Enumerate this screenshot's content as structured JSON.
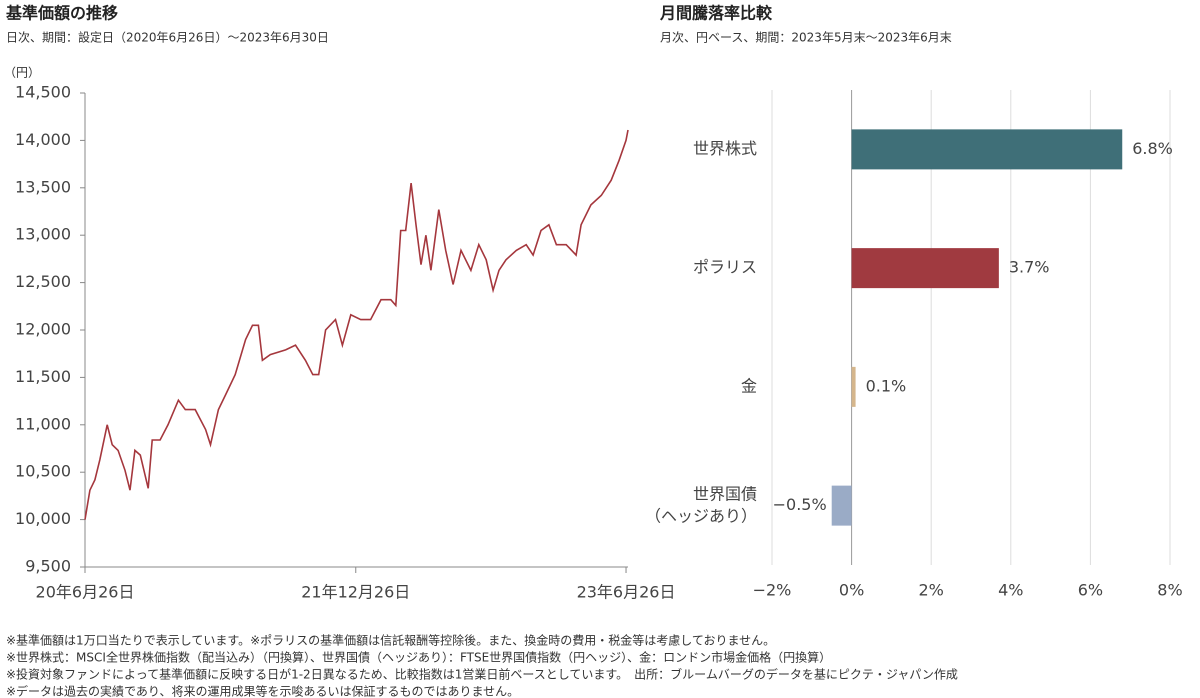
{
  "chart_data": [
    {
      "type": "line",
      "title": "基準価額の推移",
      "subtitle": "日次、期間：設定日（2020年6月26日）～2023年6月30日",
      "y_unit": "（円）",
      "color": "#a5373d",
      "grid": false,
      "x": [
        "2020-06-26",
        "2020-07-06",
        "2020-07-16",
        "2020-07-26",
        "2020-08-10",
        "2020-08-20",
        "2020-09-01",
        "2020-09-15",
        "2020-09-25",
        "2020-10-05",
        "2020-10-16",
        "2020-11-01",
        "2020-11-09",
        "2020-11-25",
        "2020-12-11",
        "2021-01-01",
        "2021-01-15",
        "2021-02-04",
        "2021-02-25",
        "2021-03-07",
        "2021-03-23",
        "2021-04-06",
        "2021-04-26",
        "2021-05-17",
        "2021-05-31",
        "2021-06-12",
        "2021-06-20",
        "2021-07-06",
        "2021-08-06",
        "2021-08-26",
        "2021-09-15",
        "2021-09-30",
        "2021-10-12",
        "2021-10-26",
        "2021-11-15",
        "2021-11-29",
        "2021-12-16",
        "2022-01-05",
        "2022-01-25",
        "2022-02-15",
        "2022-03-07",
        "2022-03-17",
        "2022-03-27",
        "2022-04-06",
        "2022-04-17",
        "2022-04-27",
        "2022-05-07",
        "2022-05-17",
        "2022-05-27",
        "2022-06-12",
        "2022-06-26",
        "2022-07-11",
        "2022-07-27",
        "2022-08-16",
        "2022-09-01",
        "2022-09-16",
        "2022-09-30",
        "2022-10-12",
        "2022-10-26",
        "2022-11-16",
        "2022-12-06",
        "2022-12-20",
        "2023-01-05",
        "2023-01-21",
        "2023-02-05",
        "2023-02-25",
        "2023-03-17",
        "2023-03-27",
        "2023-04-16",
        "2023-05-07",
        "2023-05-27",
        "2023-06-12",
        "2023-06-26",
        "2023-06-30"
      ],
      "values": [
        10000,
        10310,
        10420,
        10630,
        11000,
        10790,
        10730,
        10520,
        10310,
        10730,
        10680,
        10330,
        10840,
        10840,
        11000,
        11260,
        11160,
        11160,
        10950,
        10790,
        11160,
        11310,
        11530,
        11900,
        12050,
        12050,
        11680,
        11740,
        11790,
        11840,
        11680,
        11530,
        11530,
        12000,
        12110,
        11840,
        12160,
        12110,
        12110,
        12320,
        12320,
        12260,
        13050,
        13050,
        13550,
        13110,
        12690,
        13000,
        12630,
        13270,
        12840,
        12480,
        12840,
        12630,
        12900,
        12740,
        12420,
        12630,
        12740,
        12840,
        12900,
        12790,
        13050,
        13110,
        12900,
        12900,
        12790,
        13110,
        13320,
        13420,
        13580,
        13790,
        14000,
        14110
      ],
      "xlim": [
        "2020-06-26",
        "2023-06-30"
      ],
      "xticks": [
        {
          "value": "2020-06-26",
          "label": "20年6月26日"
        },
        {
          "value": "2021-12-26",
          "label": "21年12月26日"
        },
        {
          "value": "2023-06-26",
          "label": "23年6月26日"
        }
      ],
      "ylim": [
        9500,
        14500
      ],
      "yticks": [
        {
          "value": 9500,
          "label": "9,500"
        },
        {
          "value": 10000,
          "label": "10,000"
        },
        {
          "value": 10500,
          "label": "10,500"
        },
        {
          "value": 11000,
          "label": "11,000"
        },
        {
          "value": 11500,
          "label": "11,500"
        },
        {
          "value": 12000,
          "label": "12,000"
        },
        {
          "value": 12500,
          "label": "12,500"
        },
        {
          "value": 13000,
          "label": "13,000"
        },
        {
          "value": 13500,
          "label": "13,500"
        },
        {
          "value": 14000,
          "label": "14,000"
        },
        {
          "value": 14500,
          "label": "14,500"
        }
      ]
    },
    {
      "type": "bar",
      "horizontal": true,
      "title": "月間騰落率比較",
      "subtitle": "月次、円ベース、期間：2023年5月末～2023年6月末",
      "grid": true,
      "categories": [
        "世界株式",
        "ポラリス",
        "金",
        "世界国債\n（ヘッジあり）"
      ],
      "values": [
        6.8,
        3.7,
        0.1,
        -0.5
      ],
      "value_labels": [
        "6.8%",
        "3.7%",
        "0.1%",
        "−0.5%"
      ],
      "colors": [
        "#3f6f78",
        "#a03a40",
        "#d5b68c",
        "#9aabc6"
      ],
      "xlim": [
        -2,
        8
      ],
      "xticks": [
        {
          "value": -2,
          "label": "−2%"
        },
        {
          "value": 0,
          "label": "0%"
        },
        {
          "value": 2,
          "label": "2%"
        },
        {
          "value": 4,
          "label": "4%"
        },
        {
          "value": 6,
          "label": "6%"
        },
        {
          "value": 8,
          "label": "8%"
        }
      ]
    }
  ],
  "notes": [
    "※基準価額は1万口当たりで表示しています。※ポラリスの基準価額は信託報酬等控除後。また、換金時の費用・税金等は考慮しておりません。",
    "※世界株式：MSCI全世界株価指数（配当込み）（円換算）、世界国債（ヘッジあり）：FTSE世界国債指数（円ヘッジ）、金：ロンドン市場金価格（円換算）",
    "※投資対象ファンドによって基準価額に反映する日が1-2日異なるため、比較指数は1営業日前ベースとしています。　出所：ブルームバーグのデータを基にピクテ・ジャパン作成",
    "※データは過去の実績であり、将来の運用成果等を示唆あるいは保証するものではありません。"
  ]
}
